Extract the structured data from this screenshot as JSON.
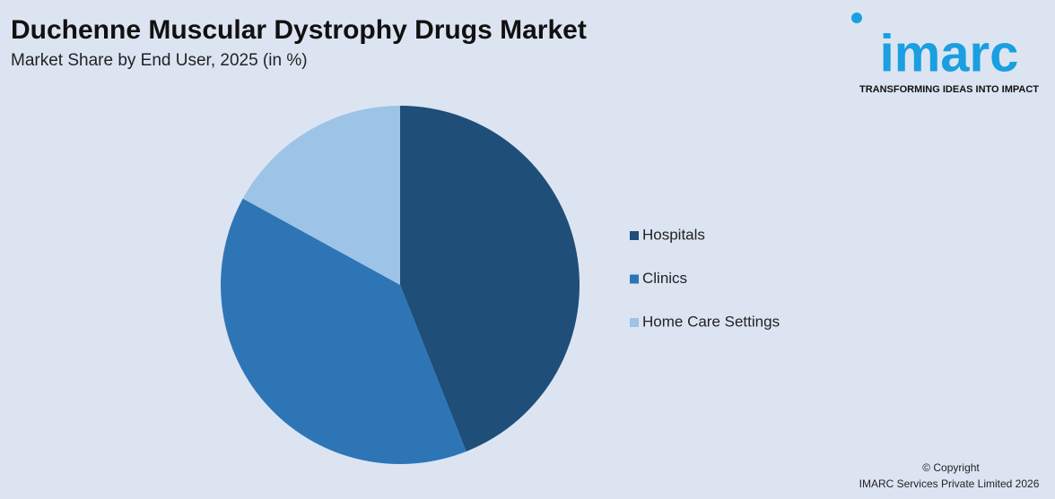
{
  "chart_data": {
    "type": "pie",
    "title": "Duchenne Muscular Dystrophy Drugs Market",
    "subtitle": "Market Share by End User, 2025 (in %)",
    "categories": [
      "Hospitals",
      "Clinics",
      "Home Care Settings"
    ],
    "values": [
      44,
      39,
      17
    ],
    "colors": [
      "#1f4e79",
      "#2e75b6",
      "#9dc3e6"
    ],
    "legend": "right"
  },
  "logo": {
    "name": "imarc",
    "tagline": "TRANSFORMING IDEAS INTO IMPACT"
  },
  "footer": {
    "line1": "© Copyright",
    "line2": "IMARC Services Private Limited 2026"
  }
}
